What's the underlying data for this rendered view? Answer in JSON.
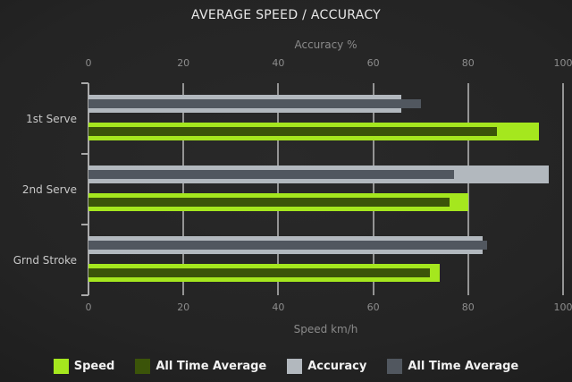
{
  "title": "AVERAGE SPEED / ACCURACY",
  "chart_data": {
    "type": "bar",
    "orientation": "horizontal",
    "title": "AVERAGE SPEED / ACCURACY",
    "categories": [
      "1st Serve",
      "2nd Serve",
      "Grnd Stroke"
    ],
    "series": [
      {
        "name": "Speed",
        "color": "#a5e71e",
        "axis": "bottom",
        "role": "speed-current",
        "values": [
          95,
          80,
          74
        ]
      },
      {
        "name": "All Time Average",
        "color": "#3b5409",
        "axis": "bottom",
        "role": "speed-average",
        "values": [
          86,
          76,
          72
        ]
      },
      {
        "name": "Accuracy",
        "color": "#b2b8be",
        "axis": "top",
        "role": "accuracy-current",
        "values": [
          66,
          97,
          83
        ]
      },
      {
        "name": "All Time Average",
        "color": "#51575f",
        "axis": "top",
        "role": "accuracy-average",
        "values": [
          70,
          77,
          84
        ]
      }
    ],
    "axes": {
      "top": {
        "label": "Accuracy %",
        "ticks": [
          0,
          20,
          40,
          60,
          80,
          100
        ],
        "range": [
          0,
          100
        ]
      },
      "bottom": {
        "label": "Speed km/h",
        "ticks": [
          0,
          20,
          40,
          60,
          80,
          100
        ],
        "range": [
          0,
          100
        ]
      }
    },
    "legend": {
      "position": "bottom",
      "entries": [
        "Speed",
        "All Time Average",
        "Accuracy",
        "All Time Average"
      ]
    },
    "grid": true
  },
  "colors": {
    "background_center": "#292929",
    "background_edge": "#121212",
    "grid_line": "#949494",
    "axis_line": "#a9a9a9",
    "title_text": "#e8e8e8",
    "axis_text": "#8a8a8a",
    "category_text": "#c8c8c8",
    "legend_text": "#f2f2f2"
  }
}
